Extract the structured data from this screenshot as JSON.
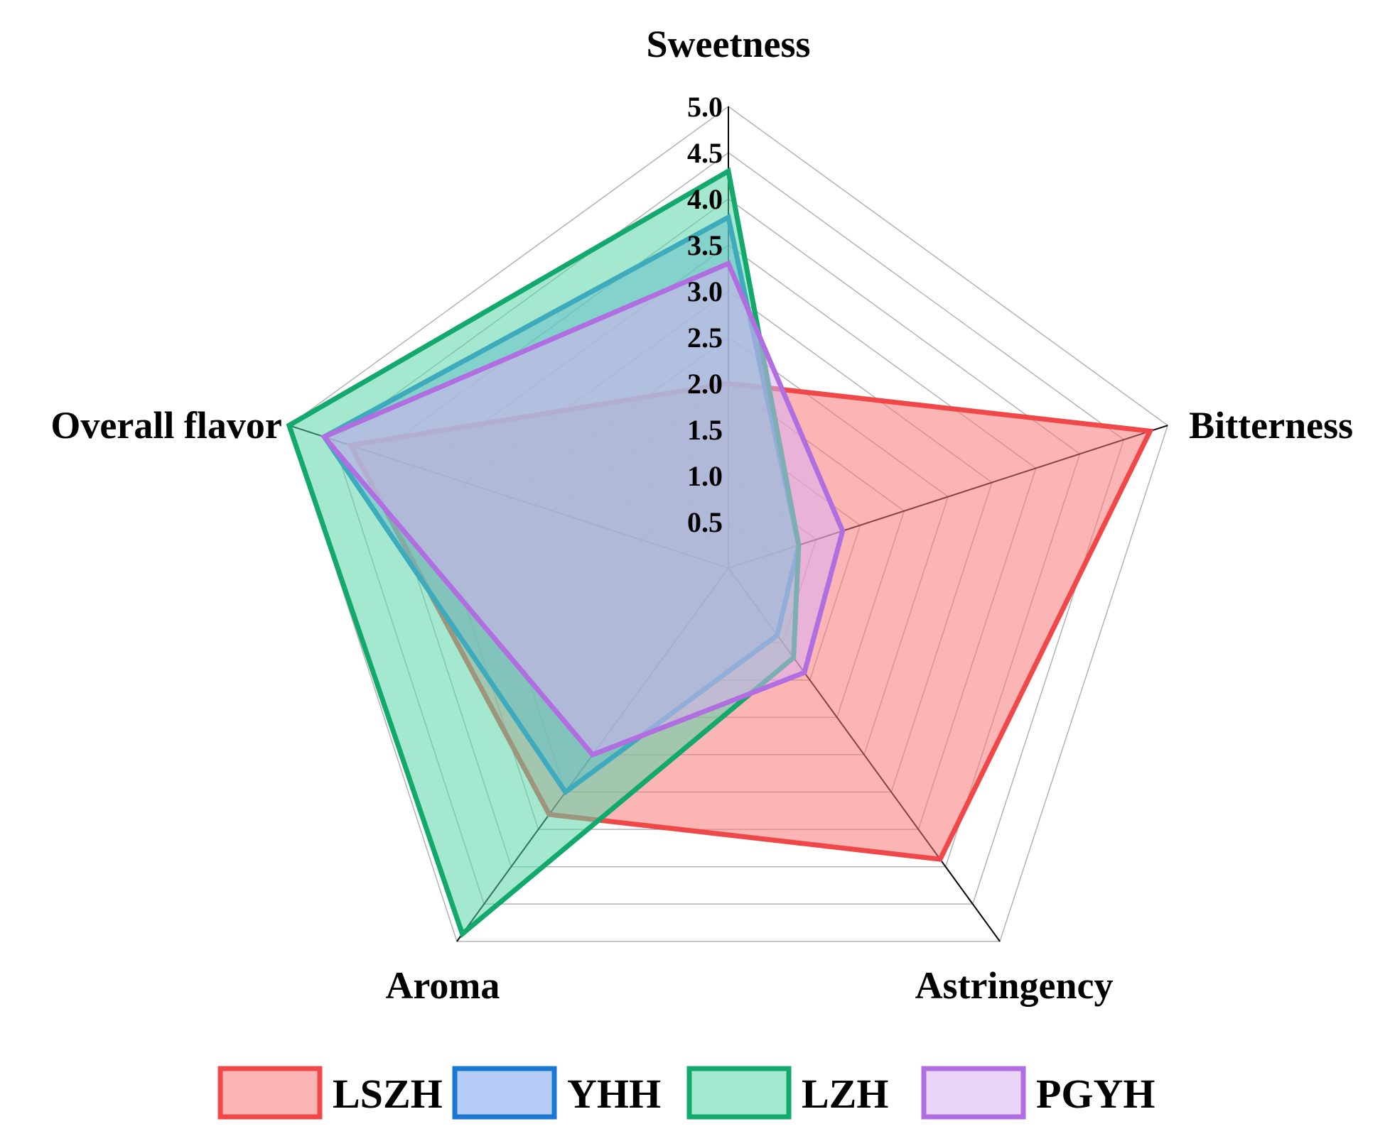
{
  "chart_data": {
    "type": "radar",
    "title": "",
    "axes": [
      "Sweetness",
      "Bitterness",
      "Astringency",
      "Aroma",
      "Overall flavor"
    ],
    "ticks": [
      "0.5",
      "1.0",
      "1.5",
      "2.0",
      "2.5",
      "3.0",
      "3.5",
      "4.0",
      "4.5",
      "5.0"
    ],
    "rlim": [
      0,
      5.0
    ],
    "grid": true,
    "legend_position": "bottom",
    "series": [
      {
        "name": "LSZH",
        "values": [
          2.0,
          4.8,
          3.9,
          3.3,
          4.3
        ],
        "stroke": "#f04848",
        "fill": "#f87878"
      },
      {
        "name": "YHH",
        "values": [
          3.8,
          0.8,
          0.9,
          3.0,
          4.6
        ],
        "stroke": "#1b78d2",
        "fill": "#7aa6f0"
      },
      {
        "name": "LZH",
        "values": [
          4.3,
          0.8,
          1.2,
          4.9,
          5.0
        ],
        "stroke": "#13a86c",
        "fill": "#5ad6a8"
      },
      {
        "name": "PGYH",
        "values": [
          3.3,
          1.3,
          1.4,
          2.5,
          4.6
        ],
        "stroke": "#b06ee0",
        "fill": "#d8b0f0"
      }
    ]
  }
}
